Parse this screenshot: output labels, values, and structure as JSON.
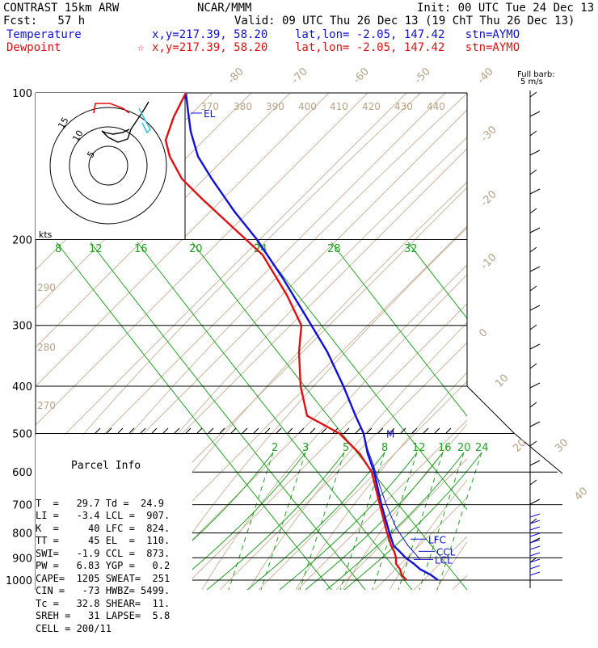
{
  "header": {
    "model": "CONTRAST 15km ARW",
    "org": "NCAR/MMM",
    "init": "Init: 00 UTC Tue 24 Dec 13",
    "fcst": "Fcst:   57 h",
    "valid": "Valid: 09 UTC Thu 26 Dec 13 (19 ChT Thu 26 Dec 13)",
    "temp_label": "Temperature",
    "temp_info": "x,y=217.39, 58.20    lat,lon= -2.05, 147.42   stn=AYMO",
    "dew_label": "Dewpoint",
    "dew_info": "x,y=217.39, 58.20    lat,lon= -2.05, 147.42   stn=AYMO",
    "star": "☆"
  },
  "parcel": {
    "title": "Parcel Info",
    "rows": [
      "T  =   29.7 Td =  24.9",
      "LI =   -3.4 LCL =  907.",
      "K  =     40 LFC =  824.",
      "TT =     45 EL  =  110.",
      "SWI=   -1.9 CCL =  873.",
      "PW =   6.83 YGP =   0.2",
      "CAPE=  1205 SWEAT=  251",
      "CIN =   -73 HWBZ= 5499.",
      "Tc =   32.8 SHEAR=  11.",
      "SREH =   31 LAPSE=  5.8",
      "CELL = 200/11"
    ]
  },
  "chart_data": {
    "type": "line",
    "title": "",
    "ylabel": "",
    "xlabel": "",
    "y_scale": "log-pressure",
    "ylim": [
      1000,
      100
    ],
    "pressure_ticks": [
      100,
      200,
      300,
      400,
      500,
      600,
      700,
      800,
      900,
      1000
    ],
    "isotherm_labels_top": [
      "-80",
      "-70",
      "-60",
      "-50",
      "-40"
    ],
    "isotherm_labels_right": [
      "-30",
      "-20",
      "-10",
      "0",
      "10",
      "20",
      "30",
      "40"
    ],
    "theta_labels_top": [
      "370",
      "380",
      "390",
      "400",
      "410",
      "420",
      "430",
      "440"
    ],
    "theta_labels_left": [
      "290",
      "280",
      "270"
    ],
    "mixing_ratio_upper": [
      "8",
      "12",
      "16",
      "20",
      "24",
      "28",
      "32"
    ],
    "mixing_ratio_lower": [
      "2",
      "3",
      "5",
      "8",
      "12",
      "16",
      "20",
      "24"
    ],
    "series": [
      {
        "name": "Temperature",
        "color": "#1010d8",
        "x": [
          542,
          533,
          520,
          512,
          502,
          495,
          487,
          482,
          472,
          463,
          455,
          450,
          440,
          425,
          405,
          380,
          350,
          318,
          290,
          262,
          245,
          236,
          233,
          230
        ],
        "y": [
          1000,
          975,
          950,
          925,
          900,
          875,
          850,
          800,
          700,
          600,
          550,
          500,
          460,
          400,
          340,
          290,
          240,
          200,
          175,
          150,
          135,
          120,
          110,
          100
        ]
      },
      {
        "name": "Dewpoint",
        "color": "#e01010",
        "x": [
          503,
          497,
          495,
          490,
          490,
          488,
          484,
          479,
          470,
          460,
          445,
          420,
          380,
          372,
          370,
          373,
          355,
          325,
          290,
          250,
          225,
          210,
          205,
          215,
          230
        ],
        "y": [
          1000,
          975,
          950,
          925,
          900,
          875,
          850,
          800,
          700,
          600,
          550,
          500,
          460,
          400,
          340,
          300,
          260,
          215,
          190,
          165,
          150,
          135,
          125,
          112,
          100
        ]
      },
      {
        "name": "Parcel",
        "color": "#1010d8",
        "x": [
          520,
          505,
          490,
          478,
          470,
          462,
          455,
          450
        ],
        "y": [
          907,
          850,
          780,
          700,
          640,
          580,
          540,
          500
        ]
      }
    ],
    "levels": [
      {
        "label": "EL",
        "p": 110
      },
      {
        "label": "M",
        "p": 500
      },
      {
        "label": "LFC",
        "p": 824
      },
      {
        "label": "CCL",
        "p": 873
      },
      {
        "label": "LCL",
        "p": 907
      }
    ],
    "hodograph": {
      "unit": "kts",
      "ring_labels": [
        "5",
        "10",
        "15"
      ]
    },
    "wind_legend": {
      "label1": "Full barb:",
      "label2": "5 m/s"
    }
  }
}
